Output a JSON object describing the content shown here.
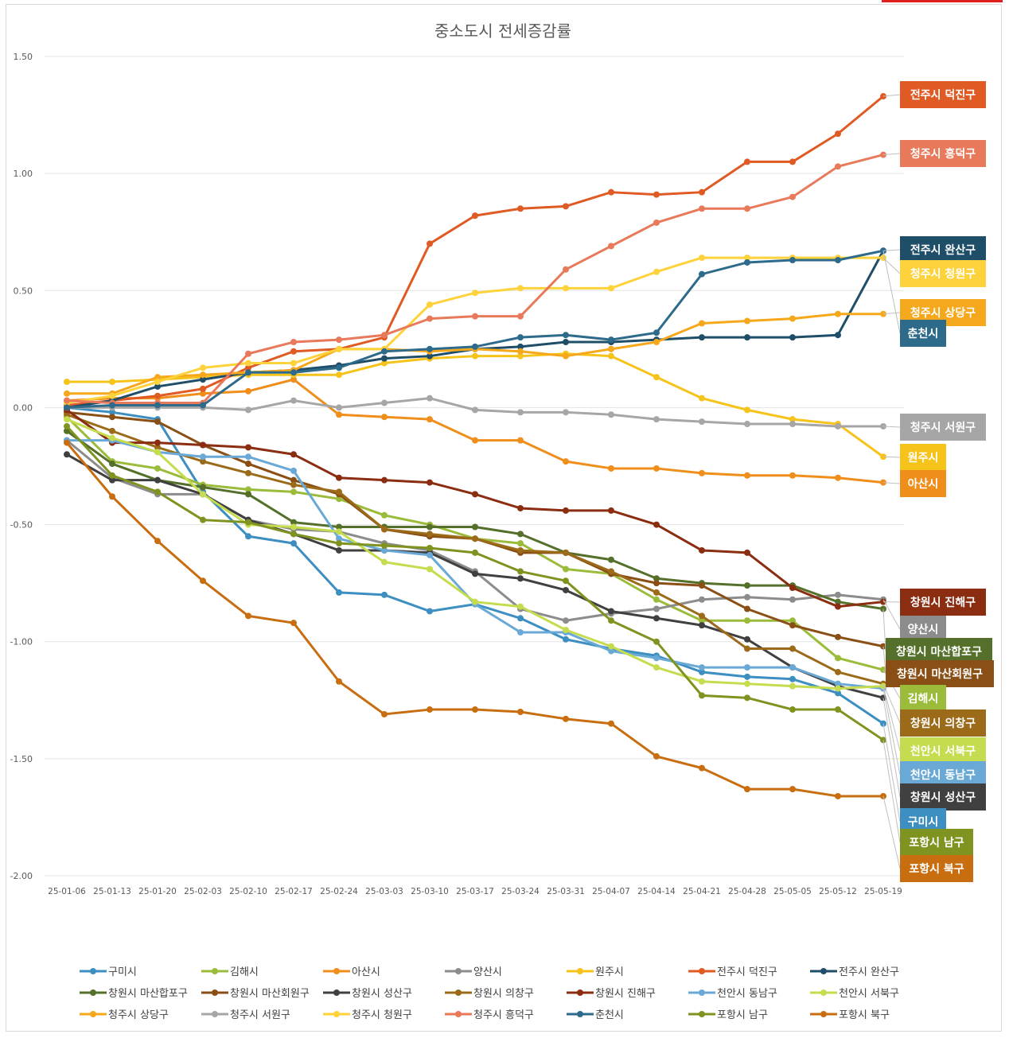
{
  "chart_data": {
    "type": "line",
    "title": "중소도시 전세증감률",
    "xlabel": "",
    "ylabel": "",
    "ylim": [
      -2.0,
      1.5
    ],
    "yticks": [
      "1.50",
      "1.00",
      "0.50",
      "0.00",
      "-0.50",
      "-1.00",
      "-1.50",
      "-2.00"
    ],
    "ytick_values": [
      1.5,
      1.0,
      0.5,
      0.0,
      -0.5,
      -1.0,
      -1.5,
      -2.0
    ],
    "grid": true,
    "legend_position": "bottom",
    "categories": [
      "25-01-06",
      "25-01-13",
      "25-01-20",
      "25-02-03",
      "25-02-10",
      "25-02-17",
      "25-02-24",
      "25-03-03",
      "25-03-10",
      "25-03-17",
      "25-03-24",
      "25-03-31",
      "25-04-07",
      "25-04-14",
      "25-04-21",
      "25-04-28",
      "25-05-05",
      "25-05-12",
      "25-05-19"
    ],
    "series": [
      {
        "name": "구미시",
        "color": "#3d8fc2",
        "values": [
          0.0,
          -0.02,
          -0.05,
          -0.36,
          -0.55,
          -0.58,
          -0.79,
          -0.8,
          -0.87,
          -0.84,
          -0.9,
          -0.99,
          -1.03,
          -1.06,
          -1.13,
          -1.15,
          -1.16,
          -1.22,
          -1.35
        ]
      },
      {
        "name": "김해시",
        "color": "#9bbb3a",
        "values": [
          -0.04,
          -0.23,
          -0.26,
          -0.33,
          -0.35,
          -0.36,
          -0.39,
          -0.46,
          -0.5,
          -0.56,
          -0.58,
          -0.69,
          -0.71,
          -0.82,
          -0.91,
          -0.91,
          -0.91,
          -1.07,
          -1.12
        ]
      },
      {
        "name": "아산시",
        "color": "#f08e1c",
        "values": [
          0.03,
          0.04,
          0.04,
          0.06,
          0.07,
          0.12,
          -0.03,
          -0.04,
          -0.05,
          -0.14,
          -0.14,
          -0.23,
          -0.26,
          -0.26,
          -0.28,
          -0.29,
          -0.29,
          -0.3,
          -0.32
        ]
      },
      {
        "name": "양산시",
        "color": "#8c8c8c",
        "values": [
          -0.14,
          -0.3,
          -0.37,
          -0.37,
          -0.48,
          -0.52,
          -0.53,
          -0.58,
          -0.61,
          -0.7,
          -0.86,
          -0.91,
          -0.88,
          -0.86,
          -0.82,
          -0.81,
          -0.82,
          -0.8,
          -0.82
        ]
      },
      {
        "name": "원주시",
        "color": "#f6c31b",
        "values": [
          0.11,
          0.11,
          0.12,
          0.13,
          0.14,
          0.14,
          0.14,
          0.19,
          0.21,
          0.22,
          0.22,
          0.23,
          0.22,
          0.13,
          0.04,
          -0.01,
          -0.05,
          -0.07,
          -0.21
        ]
      },
      {
        "name": "전주시 덕진구",
        "color": "#e05a24",
        "values": [
          0.01,
          0.03,
          0.05,
          0.08,
          0.17,
          0.24,
          0.25,
          0.3,
          0.7,
          0.82,
          0.85,
          0.86,
          0.92,
          0.91,
          0.92,
          1.05,
          1.05,
          1.17,
          1.33
        ]
      },
      {
        "name": "전주시 완산구",
        "color": "#1f4e69",
        "values": [
          0.0,
          0.03,
          0.09,
          0.12,
          0.15,
          0.16,
          0.18,
          0.21,
          0.22,
          0.25,
          0.26,
          0.28,
          0.28,
          0.29,
          0.3,
          0.3,
          0.3,
          0.31,
          0.67
        ]
      },
      {
        "name": "창원시 마산합포구",
        "color": "#54702a",
        "values": [
          -0.1,
          -0.24,
          -0.31,
          -0.34,
          -0.37,
          -0.49,
          -0.51,
          -0.51,
          -0.51,
          -0.51,
          -0.54,
          -0.62,
          -0.65,
          -0.73,
          -0.75,
          -0.76,
          -0.76,
          -0.83,
          -0.86
        ]
      },
      {
        "name": "창원시 마산회원구",
        "color": "#8a4f14",
        "values": [
          -0.02,
          -0.04,
          -0.06,
          -0.16,
          -0.24,
          -0.31,
          -0.37,
          -0.52,
          -0.55,
          -0.56,
          -0.62,
          -0.62,
          -0.71,
          -0.75,
          -0.76,
          -0.86,
          -0.93,
          -0.98,
          -1.02
        ]
      },
      {
        "name": "창원시 성산구",
        "color": "#404040",
        "values": [
          -0.2,
          -0.31,
          -0.31,
          -0.37,
          -0.48,
          -0.54,
          -0.61,
          -0.61,
          -0.62,
          -0.71,
          -0.73,
          -0.78,
          -0.87,
          -0.9,
          -0.93,
          -0.99,
          -1.11,
          -1.19,
          -1.24
        ]
      },
      {
        "name": "창원시 의창구",
        "color": "#9c6b1a",
        "values": [
          -0.03,
          -0.1,
          -0.17,
          -0.23,
          -0.28,
          -0.33,
          -0.36,
          -0.52,
          -0.54,
          -0.56,
          -0.61,
          -0.62,
          -0.7,
          -0.79,
          -0.89,
          -1.03,
          -1.03,
          -1.13,
          -1.18
        ]
      },
      {
        "name": "창원시 진해구",
        "color": "#8a2d10",
        "values": [
          -0.01,
          -0.15,
          -0.15,
          -0.16,
          -0.17,
          -0.2,
          -0.3,
          -0.31,
          -0.32,
          -0.37,
          -0.43,
          -0.44,
          -0.44,
          -0.5,
          -0.61,
          -0.62,
          -0.77,
          -0.85,
          -0.83
        ]
      },
      {
        "name": "천안시 동남구",
        "color": "#6aa9d6",
        "values": [
          -0.14,
          -0.14,
          -0.19,
          -0.21,
          -0.21,
          -0.27,
          -0.56,
          -0.61,
          -0.63,
          -0.84,
          -0.96,
          -0.96,
          -1.04,
          -1.07,
          -1.11,
          -1.11,
          -1.11,
          -1.18,
          -1.2
        ]
      },
      {
        "name": "천안시 서북구",
        "color": "#c5dc4e",
        "values": [
          -0.05,
          -0.13,
          -0.19,
          -0.37,
          -0.5,
          -0.51,
          -0.53,
          -0.66,
          -0.69,
          -0.83,
          -0.85,
          -0.95,
          -1.02,
          -1.11,
          -1.17,
          -1.18,
          -1.19,
          -1.2,
          -1.19
        ]
      },
      {
        "name": "청주시 상당구",
        "color": "#f6a81c",
        "values": [
          0.06,
          0.06,
          0.13,
          0.14,
          0.15,
          0.16,
          0.25,
          0.25,
          0.24,
          0.25,
          0.24,
          0.22,
          0.25,
          0.28,
          0.36,
          0.37,
          0.38,
          0.4,
          0.4
        ]
      },
      {
        "name": "청주시 서원구",
        "color": "#a6a6a6",
        "values": [
          0.0,
          0.0,
          0.0,
          0.0,
          -0.01,
          0.03,
          0.0,
          0.02,
          0.04,
          -0.01,
          -0.02,
          -0.02,
          -0.03,
          -0.05,
          -0.06,
          -0.07,
          -0.07,
          -0.08,
          -0.08
        ]
      },
      {
        "name": "청주시 청원구",
        "color": "#fdd23a",
        "values": [
          0.02,
          0.05,
          0.11,
          0.17,
          0.19,
          0.19,
          0.25,
          0.25,
          0.44,
          0.49,
          0.51,
          0.51,
          0.51,
          0.58,
          0.64,
          0.64,
          0.64,
          0.64,
          0.64
        ]
      },
      {
        "name": "청주시 흥덕구",
        "color": "#e8795a",
        "values": [
          0.03,
          0.02,
          0.02,
          0.02,
          0.23,
          0.28,
          0.29,
          0.31,
          0.38,
          0.39,
          0.39,
          0.59,
          0.69,
          0.79,
          0.85,
          0.85,
          0.9,
          1.03,
          1.08
        ]
      },
      {
        "name": "춘천시",
        "color": "#2e6a8a",
        "values": [
          0.0,
          0.01,
          0.01,
          0.01,
          0.15,
          0.15,
          0.17,
          0.24,
          0.25,
          0.26,
          0.3,
          0.31,
          0.29,
          0.32,
          0.57,
          0.62,
          0.63,
          0.63,
          0.67
        ]
      },
      {
        "name": "포항시 남구",
        "color": "#7f9420",
        "values": [
          -0.08,
          -0.29,
          -0.36,
          -0.48,
          -0.49,
          -0.54,
          -0.58,
          -0.59,
          -0.6,
          -0.62,
          -0.7,
          -0.74,
          -0.91,
          -1.0,
          -1.23,
          -1.24,
          -1.29,
          -1.29,
          -1.42
        ]
      },
      {
        "name": "포항시 북구",
        "color": "#c86e10",
        "values": [
          -0.15,
          -0.38,
          -0.57,
          -0.74,
          -0.89,
          -0.92,
          -1.17,
          -1.31,
          -1.29,
          -1.29,
          -1.3,
          -1.33,
          -1.35,
          -1.49,
          -1.54,
          -1.63,
          -1.63,
          -1.66,
          -1.66
        ]
      }
    ],
    "end_labels": [
      {
        "text": "전주시 덕진구",
        "color": "#e05a24",
        "series": "전주시 덕진구"
      },
      {
        "text": "청주시 흥덕구",
        "color": "#e8795a",
        "series": "청주시 흥덕구"
      },
      {
        "text": "전주시 완산구",
        "color": "#1f4e69",
        "series": "전주시 완산구"
      },
      {
        "text": "청주시 청원구",
        "color": "#fdd23a",
        "series": "청주시 청원구"
      },
      {
        "text": "청주시 상당구",
        "color": "#f6a81c",
        "series": "청주시 상당구"
      },
      {
        "text": "춘천시",
        "color": "#2e6a8a",
        "series": "춘천시"
      },
      {
        "text": "청주시 서원구",
        "color": "#a6a6a6",
        "series": "청주시 서원구"
      },
      {
        "text": "원주시",
        "color": "#f6c31b",
        "series": "원주시"
      },
      {
        "text": "아산시",
        "color": "#f08e1c",
        "series": "아산시"
      },
      {
        "text": "창원시 진해구",
        "color": "#8a2d10",
        "series": "창원시 진해구"
      },
      {
        "text": "양산시",
        "color": "#8c8c8c",
        "series": "양산시"
      },
      {
        "text": "창원시 마산합포구",
        "color": "#54702a",
        "series": "창원시 마산합포구"
      },
      {
        "text": "창원시 마산회원구",
        "color": "#8a4f14",
        "series": "창원시 마산회원구"
      },
      {
        "text": "김해시",
        "color": "#9bbb3a",
        "series": "김해시"
      },
      {
        "text": "창원시 의창구",
        "color": "#9c6b1a",
        "series": "창원시 의창구"
      },
      {
        "text": "천안시 서북구",
        "color": "#c5dc4e",
        "series": "천안시 서북구"
      },
      {
        "text": "천안시 동남구",
        "color": "#6aa9d6",
        "series": "천안시 동남구"
      },
      {
        "text": "창원시 성산구",
        "color": "#404040",
        "series": "창원시 성산구"
      },
      {
        "text": "구미시",
        "color": "#3d8fc2",
        "series": "구미시"
      },
      {
        "text": "포항시 남구",
        "color": "#7f9420",
        "series": "포항시 남구"
      },
      {
        "text": "포항시 북구",
        "color": "#c86e10",
        "series": "포항시 북구"
      }
    ]
  }
}
